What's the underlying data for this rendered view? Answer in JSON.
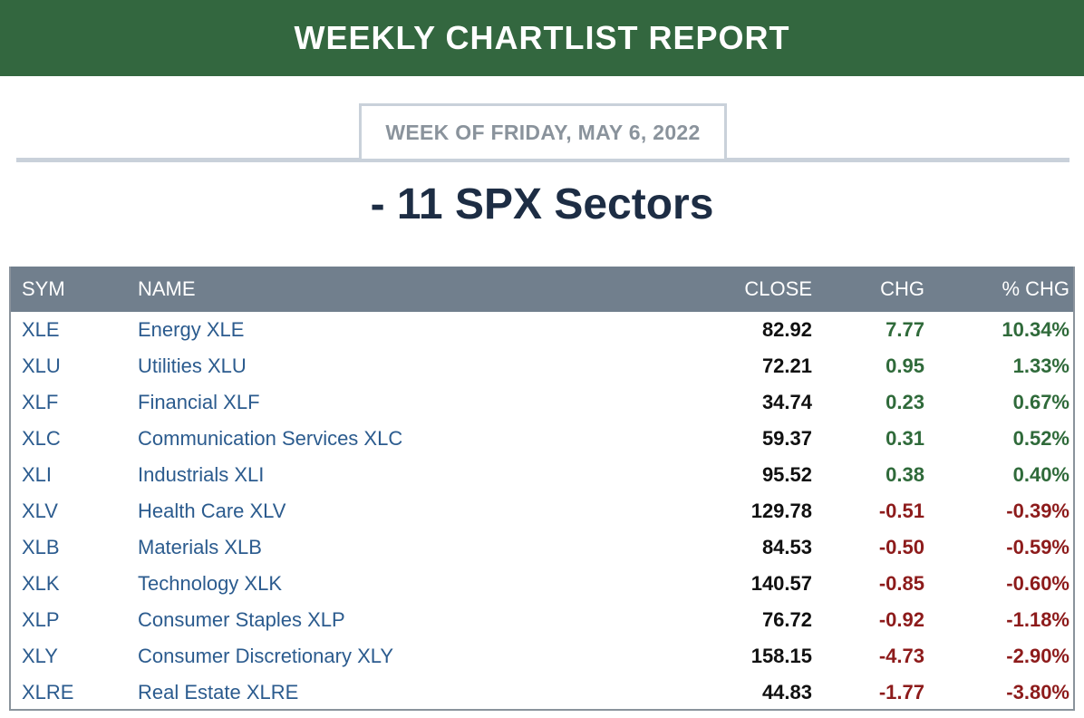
{
  "banner": {
    "title": "WEEKLY CHARTLIST REPORT"
  },
  "week": {
    "label": "WEEK OF FRIDAY, MAY 6, 2022"
  },
  "heading": "- 11 SPX Sectors",
  "colors": {
    "banner": "#33673f",
    "positive": "#2f6a3a",
    "negative": "#8d1b1b",
    "link": "#2b5b8e",
    "header_row": "#717f8d"
  },
  "table": {
    "headers": {
      "sym": "SYM",
      "name": "NAME",
      "close": "CLOSE",
      "chg": "CHG",
      "pct": "% CHG"
    },
    "rows": [
      {
        "sym": "XLE",
        "name": "Energy XLE",
        "close": "82.92",
        "chg": "7.77",
        "pct": "10.34%",
        "dir": "up"
      },
      {
        "sym": "XLU",
        "name": "Utilities XLU",
        "close": "72.21",
        "chg": "0.95",
        "pct": "1.33%",
        "dir": "up"
      },
      {
        "sym": "XLF",
        "name": "Financial XLF",
        "close": "34.74",
        "chg": "0.23",
        "pct": "0.67%",
        "dir": "up"
      },
      {
        "sym": "XLC",
        "name": "Communication Services XLC",
        "close": "59.37",
        "chg": "0.31",
        "pct": "0.52%",
        "dir": "up"
      },
      {
        "sym": "XLI",
        "name": "Industrials XLI",
        "close": "95.52",
        "chg": "0.38",
        "pct": "0.40%",
        "dir": "up"
      },
      {
        "sym": "XLV",
        "name": "Health Care XLV",
        "close": "129.78",
        "chg": "-0.51",
        "pct": "-0.39%",
        "dir": "down"
      },
      {
        "sym": "XLB",
        "name": "Materials XLB",
        "close": "84.53",
        "chg": "-0.50",
        "pct": "-0.59%",
        "dir": "down"
      },
      {
        "sym": "XLK",
        "name": "Technology XLK",
        "close": "140.57",
        "chg": "-0.85",
        "pct": "-0.60%",
        "dir": "down"
      },
      {
        "sym": "XLP",
        "name": "Consumer Staples XLP",
        "close": "76.72",
        "chg": "-0.92",
        "pct": "-1.18%",
        "dir": "down"
      },
      {
        "sym": "XLY",
        "name": "Consumer Discretionary XLY",
        "close": "158.15",
        "chg": "-4.73",
        "pct": "-2.90%",
        "dir": "down"
      },
      {
        "sym": "XLRE",
        "name": "Real Estate XLRE",
        "close": "44.83",
        "chg": "-1.77",
        "pct": "-3.80%",
        "dir": "down"
      }
    ]
  }
}
